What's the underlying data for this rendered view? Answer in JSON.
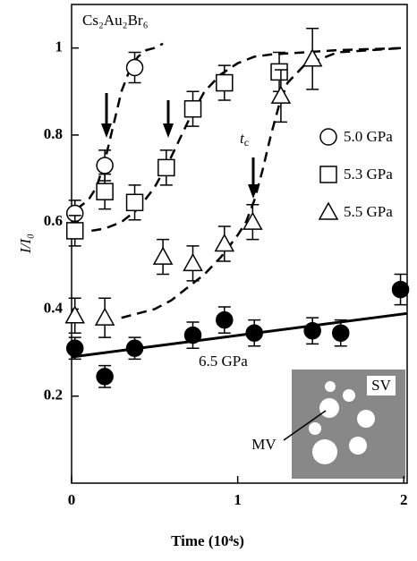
{
  "chart_data": {
    "type": "scatter",
    "title": "Cs₂Au₂Br₆",
    "x_label": "Time (10⁴s)",
    "y_label": "I/I₀",
    "xlim": [
      0,
      2.02
    ],
    "ylim": [
      0,
      1.1
    ],
    "xticks": [
      0,
      1,
      2
    ],
    "yticks": [
      0.2,
      0.4,
      0.6,
      0.8,
      1
    ],
    "series": [
      {
        "name": "5.0 GPa",
        "marker": "circle",
        "filled": false,
        "x": [
          0.02,
          0.2,
          0.38
        ],
        "values": [
          0.62,
          0.73,
          0.955
        ],
        "errors": [
          0.03,
          0.035,
          0.035
        ]
      },
      {
        "name": "5.3 GPa",
        "marker": "square",
        "filled": false,
        "x": [
          0.02,
          0.2,
          0.38,
          0.57,
          0.73,
          0.92,
          1.25
        ],
        "values": [
          0.58,
          0.67,
          0.645,
          0.725,
          0.86,
          0.92,
          0.945
        ],
        "errors": [
          0.035,
          0.04,
          0.04,
          0.04,
          0.04,
          0.04,
          0.045
        ]
      },
      {
        "name": "5.5 GPa",
        "marker": "triangle",
        "filled": false,
        "x": [
          0.02,
          0.2,
          0.55,
          0.73,
          0.92,
          1.09,
          1.26,
          1.45
        ],
        "values": [
          0.385,
          0.38,
          0.52,
          0.505,
          0.55,
          0.6,
          0.89,
          0.975
        ],
        "errors": [
          0.04,
          0.045,
          0.04,
          0.04,
          0.04,
          0.04,
          0.06,
          0.07
        ]
      },
      {
        "name": "6.5 GPa",
        "marker": "circle",
        "filled": true,
        "x": [
          0.02,
          0.2,
          0.38,
          0.73,
          0.92,
          1.1,
          1.45,
          1.62,
          1.98
        ],
        "values": [
          0.31,
          0.245,
          0.31,
          0.34,
          0.375,
          0.345,
          0.35,
          0.345,
          0.445
        ],
        "errors": [
          0.025,
          0.025,
          0.025,
          0.03,
          0.03,
          0.03,
          0.03,
          0.03,
          0.035
        ]
      }
    ],
    "fits": [
      {
        "style": "dashed",
        "x": [
          0.03,
          0.1,
          0.15,
          0.2,
          0.25,
          0.3,
          0.35,
          0.4,
          0.45,
          0.5,
          0.55
        ],
        "values": [
          0.63,
          0.65,
          0.68,
          0.74,
          0.82,
          0.9,
          0.95,
          0.98,
          0.995,
          1.0,
          1.01
        ]
      },
      {
        "style": "dashed",
        "x": [
          0.12,
          0.2,
          0.3,
          0.4,
          0.5,
          0.6,
          0.7,
          0.8,
          0.9,
          1.0,
          1.1,
          1.2,
          1.4,
          1.6,
          2.0
        ],
        "values": [
          0.58,
          0.585,
          0.6,
          0.63,
          0.68,
          0.75,
          0.83,
          0.9,
          0.94,
          0.965,
          0.98,
          0.985,
          0.99,
          0.995,
          1.0
        ]
      },
      {
        "style": "dashed",
        "x": [
          0.3,
          0.4,
          0.5,
          0.6,
          0.7,
          0.8,
          0.9,
          1.0,
          1.05,
          1.1,
          1.15,
          1.2,
          1.25,
          1.3,
          1.4,
          1.6,
          2.0
        ],
        "values": [
          0.38,
          0.39,
          0.4,
          0.42,
          0.45,
          0.48,
          0.52,
          0.57,
          0.6,
          0.65,
          0.72,
          0.8,
          0.87,
          0.92,
          0.96,
          0.99,
          1.0
        ]
      },
      {
        "style": "solid",
        "x": [
          0,
          2.02
        ],
        "values": [
          0.29,
          0.39
        ]
      }
    ],
    "tc_annotation": {
      "text": "t",
      "subscript": "c"
    },
    "inset": {
      "sv_label": "SV",
      "mv_label": "MV"
    }
  }
}
